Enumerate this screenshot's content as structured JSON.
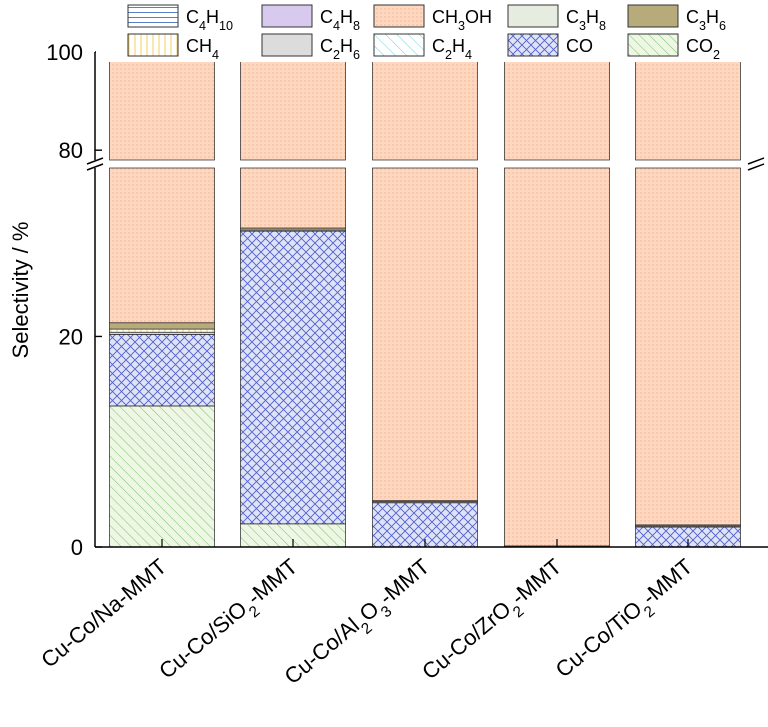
{
  "chart_data": {
    "type": "bar",
    "stacked": true,
    "broken_y_axis": true,
    "ylabel": "Selectivity / %",
    "y_segments": [
      {
        "range": [
          0,
          36
        ],
        "ticks": [
          0,
          20
        ]
      },
      {
        "range": [
          78,
          100
        ],
        "ticks": [
          80,
          100
        ]
      }
    ],
    "categories": [
      {
        "parts": [
          {
            "t": "Cu-Co/Na-MMT"
          }
        ]
      },
      {
        "parts": [
          {
            "t": "Cu-Co/SiO"
          },
          {
            "t": "2",
            "sub": true
          },
          {
            "t": "-MMT"
          }
        ]
      },
      {
        "parts": [
          {
            "t": "Cu-Co/Al"
          },
          {
            "t": "2",
            "sub": true
          },
          {
            "t": "O"
          },
          {
            "t": "3",
            "sub": true
          },
          {
            "t": "-MMT"
          }
        ]
      },
      {
        "parts": [
          {
            "t": "Cu-Co/ZrO"
          },
          {
            "t": "2",
            "sub": true
          },
          {
            "t": "-MMT"
          }
        ]
      },
      {
        "parts": [
          {
            "t": "Cu-Co/TiO"
          },
          {
            "t": "2",
            "sub": true
          },
          {
            "t": "-MMT"
          }
        ]
      }
    ],
    "series": [
      {
        "key": "CO2",
        "values": [
          13.4,
          2.2,
          0.0,
          0.0,
          0.0
        ],
        "color": "#e9f3dc",
        "pattern": "diag-green"
      },
      {
        "key": "CO",
        "values": [
          6.8,
          27.8,
          4.2,
          0.0,
          1.9
        ],
        "color": "#dfe2f7",
        "pattern": "cross-blue"
      },
      {
        "key": "C2H4",
        "values": [
          0.0,
          0.0,
          0.0,
          0.0,
          0.0
        ],
        "color": "#e4f6f8",
        "pattern": "diag-cyan"
      },
      {
        "key": "C2H6",
        "values": [
          0.2,
          0.1,
          0.1,
          0.0,
          0.1
        ],
        "color": "#dcdcdc",
        "pattern": "solid"
      },
      {
        "key": "CH4",
        "values": [
          0.3,
          0.0,
          0.0,
          0.1,
          0.1
        ],
        "color": "#fff8d8",
        "pattern": "vert-yellow"
      },
      {
        "key": "C3H6",
        "values": [
          0.6,
          0.2,
          0.1,
          0.0,
          0.0
        ],
        "color": "#b7ab7c",
        "pattern": "solid"
      },
      {
        "key": "C3H8",
        "values": [
          0.0,
          0.0,
          0.0,
          0.0,
          0.0
        ],
        "color": "#e7ece0",
        "pattern": "solid"
      },
      {
        "key": "CH3OH",
        "values": [
          78.4,
          69.7,
          95.6,
          99.9,
          97.9
        ],
        "color": "#fdd9c2",
        "pattern": "dots-orange"
      },
      {
        "key": "C4H8",
        "values": [
          0.0,
          0.0,
          0.0,
          0.0,
          0.0
        ],
        "color": "#d8c9ef",
        "pattern": "solid"
      },
      {
        "key": "C4H10",
        "values": [
          0.3,
          0.0,
          0.0,
          0.0,
          0.0
        ],
        "color": "#f2f5fb",
        "pattern": "horiz-blue"
      }
    ],
    "legend": {
      "placement": "top",
      "entries": [
        {
          "series": "C4H10",
          "parts": [
            {
              "t": "C"
            },
            {
              "t": "4",
              "sub": true
            },
            {
              "t": "H"
            },
            {
              "t": "10",
              "sub": true
            }
          ]
        },
        {
          "series": "C4H8",
          "parts": [
            {
              "t": "C"
            },
            {
              "t": "4",
              "sub": true
            },
            {
              "t": "H"
            },
            {
              "t": "8",
              "sub": true
            }
          ]
        },
        {
          "series": "CH3OH",
          "parts": [
            {
              "t": "CH"
            },
            {
              "t": "3",
              "sub": true
            },
            {
              "t": "OH"
            }
          ]
        },
        {
          "series": "C3H8",
          "parts": [
            {
              "t": "C"
            },
            {
              "t": "3",
              "sub": true
            },
            {
              "t": "H"
            },
            {
              "t": "8",
              "sub": true
            }
          ]
        },
        {
          "series": "C3H6",
          "parts": [
            {
              "t": "C"
            },
            {
              "t": "3",
              "sub": true
            },
            {
              "t": "H"
            },
            {
              "t": "6",
              "sub": true
            }
          ]
        },
        {
          "series": "CH4",
          "parts": [
            {
              "t": "CH"
            },
            {
              "t": "4",
              "sub": true
            }
          ]
        },
        {
          "series": "C2H6",
          "parts": [
            {
              "t": "C"
            },
            {
              "t": "2",
              "sub": true
            },
            {
              "t": "H"
            },
            {
              "t": "6",
              "sub": true
            }
          ]
        },
        {
          "series": "C2H4",
          "parts": [
            {
              "t": "C"
            },
            {
              "t": "2",
              "sub": true
            },
            {
              "t": "H"
            },
            {
              "t": "4",
              "sub": true
            }
          ]
        },
        {
          "series": "CO",
          "parts": [
            {
              "t": "CO"
            }
          ]
        },
        {
          "series": "CO2",
          "parts": [
            {
              "t": "CO"
            },
            {
              "t": "2",
              "sub": true
            }
          ]
        }
      ]
    }
  }
}
